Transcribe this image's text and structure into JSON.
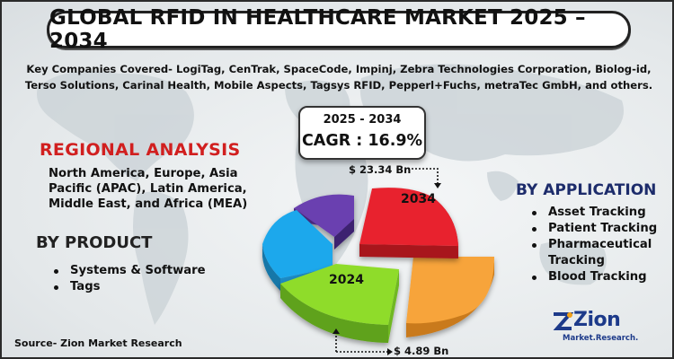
{
  "title": "GLOBAL RFID IN HEALTHCARE MARKET 2025 – 2034",
  "companies": {
    "line1": "Key Companies Covered- LogiTag, CenTrak, SpaceCode, Impinj, Zebra Technologies Corporation, Biolog-id,",
    "line2": "Terso Solutions, Carinal Health, Mobile Aspects, Tagsys RFID, Pepperl+Fuchs, metraTec GmbH, and others."
  },
  "cagr": {
    "period": "2025 - 2034",
    "value": "CAGR : 16.9%"
  },
  "regional": {
    "heading": "REGIONAL ANALYSIS",
    "text": "North America, Europe, Asia Pacific (APAC), Latin America, Middle East, and Africa (MEA)"
  },
  "product": {
    "heading": "BY PRODUCT",
    "items": [
      "Systems & Software",
      "Tags"
    ]
  },
  "application": {
    "heading": "BY APPLICATION",
    "items": [
      "Asset Tracking",
      "Patient Tracking",
      "Pharmaceutical Tracking",
      "Blood Tracking"
    ]
  },
  "pie": {
    "label_2034": "2034",
    "label_2024": "2024",
    "value_2034": "$ 23.34 Bn",
    "value_2024": "$ 4.89 Bn",
    "colors": {
      "red": "#e8232f",
      "orange": "#f7a43a",
      "green": "#8fdc2a",
      "blue": "#1da8ec",
      "purple": "#6a3fb0"
    }
  },
  "source": "Source- Zion Market Research",
  "logo": {
    "name": "Zion",
    "sub": "Market.Research."
  }
}
